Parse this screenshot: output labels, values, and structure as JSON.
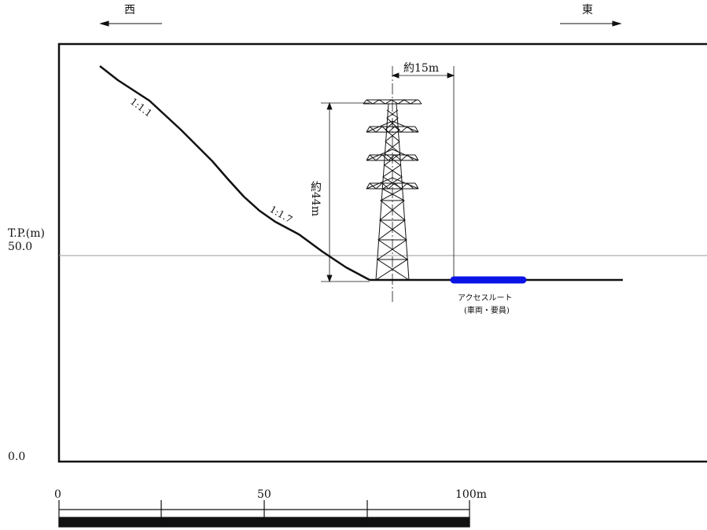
{
  "directions": {
    "west": "西",
    "east": "東"
  },
  "y_axis": {
    "title": "T.P.(m)",
    "tick_50": "50.0",
    "tick_0": "0.0"
  },
  "slope_labels": {
    "upper": "1:1.1",
    "lower": "1:1.7"
  },
  "dimensions": {
    "width": "約15m",
    "height": "約44m"
  },
  "access_route": {
    "label": "アクセスルート",
    "note": "(車両・要員)",
    "color": "#0a14e6"
  },
  "scale_bar": {
    "tick_0": "0",
    "tick_50": "50",
    "tick_100": "100m"
  }
}
